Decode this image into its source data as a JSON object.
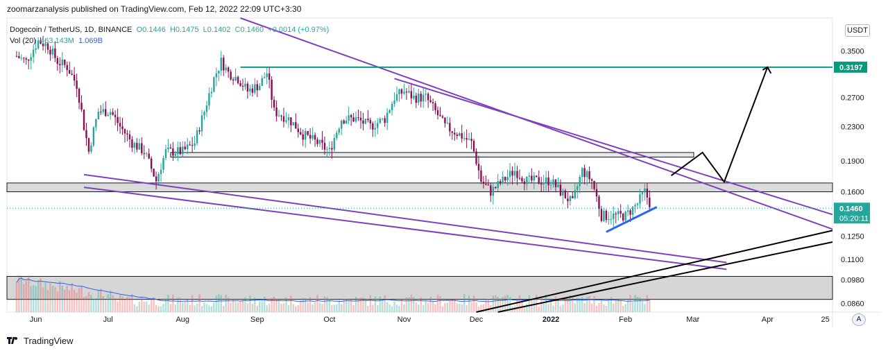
{
  "header": {
    "publisher_line": "zoomarzanalysis published on TradingView.com, Feb 12, 2022 22:09 UTC+3:30"
  },
  "legend": {
    "symbol": "Dogecoin / TetherUS, 1D, BINANCE",
    "open": "O0.1446",
    "high": "H0.1475",
    "low": "L0.1402",
    "close": "C0.1460",
    "change": "+0.0014 (+0.97%)",
    "volume_label": "Vol (20)",
    "volume": "463.143M",
    "volume_ma": "1.069B"
  },
  "currency": "USDT",
  "auto_label": "A",
  "footer": {
    "brand": "TradingView"
  },
  "colors": {
    "up": "#26a69a",
    "down": "#880e4f",
    "channel": "#7e3fbf",
    "level": "#089981",
    "trend_blue": "#2962ff",
    "zone": "#d1d1d1"
  },
  "chart_data": {
    "type": "candlestick",
    "y_scale": "log",
    "ylim": [
      0.082,
      0.42
    ],
    "y_ticks": [
      "0.3500",
      "0.3197",
      "0.2700",
      "0.2300",
      "0.1900",
      "0.1600",
      "0.1460",
      "0.1250",
      "0.1100",
      "0.0980",
      "0.0860"
    ],
    "x_ticks": [
      "Jun",
      "Jul",
      "Aug",
      "Sep",
      "Oct",
      "Nov",
      "Dec",
      "2022",
      "Feb",
      "Mar",
      "Apr",
      "25"
    ],
    "last_price": "0.1460",
    "countdown": "05:20:11",
    "target_level": "0.3197",
    "price_path": [
      [
        "2021-05-24",
        0.34
      ],
      [
        "2021-05-28",
        0.33
      ],
      [
        "2021-06-02",
        0.37
      ],
      [
        "2021-06-06",
        0.36
      ],
      [
        "2021-06-10",
        0.33
      ],
      [
        "2021-06-14",
        0.32
      ],
      [
        "2021-06-18",
        0.29
      ],
      [
        "2021-06-21",
        0.23
      ],
      [
        "2021-06-23",
        0.2
      ],
      [
        "2021-06-27",
        0.25
      ],
      [
        "2021-07-02",
        0.25
      ],
      [
        "2021-07-06",
        0.23
      ],
      [
        "2021-07-11",
        0.21
      ],
      [
        "2021-07-16",
        0.2
      ],
      [
        "2021-07-21",
        0.17
      ],
      [
        "2021-07-25",
        0.2
      ],
      [
        "2021-08-01",
        0.2
      ],
      [
        "2021-08-06",
        0.21
      ],
      [
        "2021-08-10",
        0.25
      ],
      [
        "2021-08-14",
        0.3
      ],
      [
        "2021-08-17",
        0.33
      ],
      [
        "2021-08-20",
        0.31
      ],
      [
        "2021-08-24",
        0.3
      ],
      [
        "2021-08-28",
        0.28
      ],
      [
        "2021-09-02",
        0.29
      ],
      [
        "2021-09-05",
        0.31
      ],
      [
        "2021-09-08",
        0.25
      ],
      [
        "2021-09-14",
        0.24
      ],
      [
        "2021-09-20",
        0.22
      ],
      [
        "2021-09-26",
        0.21
      ],
      [
        "2021-10-01",
        0.2
      ],
      [
        "2021-10-06",
        0.24
      ],
      [
        "2021-10-12",
        0.24
      ],
      [
        "2021-10-18",
        0.23
      ],
      [
        "2021-10-24",
        0.24
      ],
      [
        "2021-10-28",
        0.27
      ],
      [
        "2021-11-01",
        0.28
      ],
      [
        "2021-11-05",
        0.27
      ],
      [
        "2021-11-10",
        0.27
      ],
      [
        "2021-11-14",
        0.25
      ],
      [
        "2021-11-18",
        0.23
      ],
      [
        "2021-11-24",
        0.22
      ],
      [
        "2021-11-29",
        0.21
      ],
      [
        "2021-12-03",
        0.17
      ],
      [
        "2021-12-07",
        0.16
      ],
      [
        "2021-12-12",
        0.17
      ],
      [
        "2021-12-17",
        0.18
      ],
      [
        "2021-12-22",
        0.17
      ],
      [
        "2021-12-27",
        0.17
      ],
      [
        "2022-01-01",
        0.17
      ],
      [
        "2022-01-05",
        0.16
      ],
      [
        "2022-01-10",
        0.15
      ],
      [
        "2022-01-14",
        0.18
      ],
      [
        "2022-01-18",
        0.17
      ],
      [
        "2022-01-22",
        0.14
      ],
      [
        "2022-01-27",
        0.14
      ],
      [
        "2022-02-01",
        0.14
      ],
      [
        "2022-02-06",
        0.15
      ],
      [
        "2022-02-09",
        0.16
      ],
      [
        "2022-02-12",
        0.146
      ]
    ]
  }
}
